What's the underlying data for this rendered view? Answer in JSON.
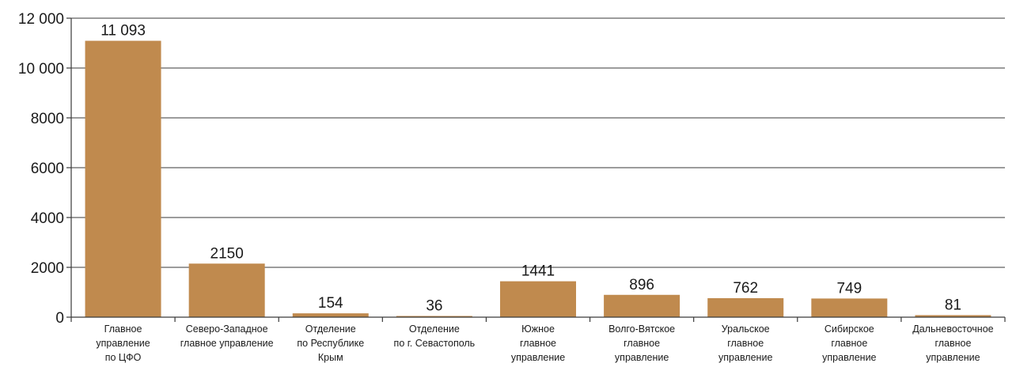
{
  "chart_data": {
    "type": "bar",
    "title": "",
    "xlabel": "",
    "ylabel": "",
    "ylim": [
      0,
      12000
    ],
    "yticks": [
      0,
      2000,
      4000,
      6000,
      8000,
      10000,
      12000
    ],
    "ytick_labels": [
      "0",
      "2000",
      "4000",
      "6000",
      "8000",
      "10 000",
      "12 000"
    ],
    "grid": true,
    "legend": "none",
    "bar_color": "#c08a4e",
    "categories": [
      [
        "Главное",
        "управление",
        "по ЦФО"
      ],
      [
        "Северо-Западное",
        "главное управление"
      ],
      [
        "Отделение",
        "по Республике",
        "Крым"
      ],
      [
        "Отделение",
        "по г. Севастополь"
      ],
      [
        "Южное",
        "главное",
        "управление"
      ],
      [
        "Волго-Вятское",
        "главное",
        "управление"
      ],
      [
        "Уральское",
        "главное",
        "управление"
      ],
      [
        "Сибирское",
        "главное",
        "управление"
      ],
      [
        "Дальневосточное",
        "главное",
        "управление"
      ]
    ],
    "values": [
      11093,
      2150,
      154,
      36,
      1441,
      896,
      762,
      749,
      81
    ],
    "value_labels": [
      "11 093",
      "2150",
      "154",
      "36",
      "1441",
      "896",
      "762",
      "749",
      "81"
    ]
  }
}
